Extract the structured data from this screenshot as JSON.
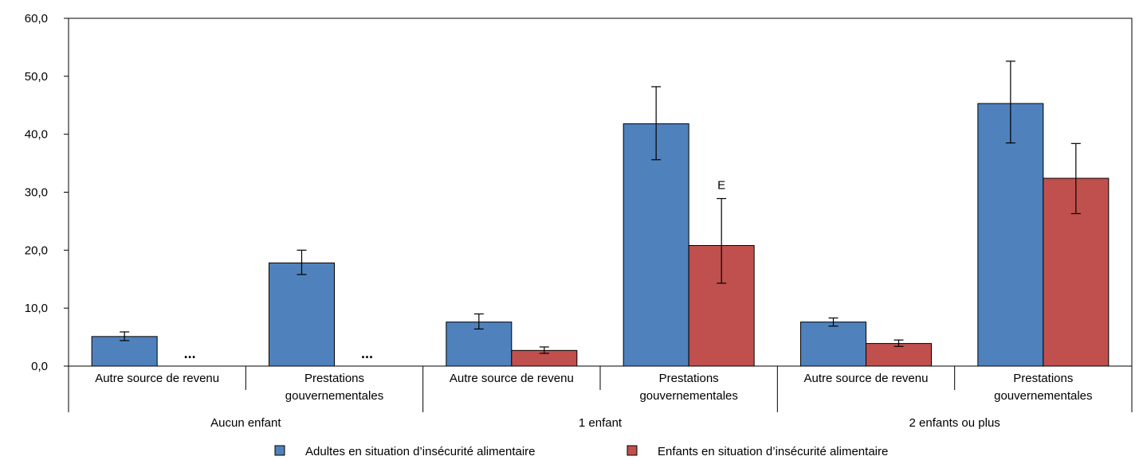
{
  "chart_data": {
    "type": "bar",
    "ylim": [
      0,
      60
    ],
    "y_ticks": [
      "0,0",
      "10,0",
      "20,0",
      "30,0",
      "40,0",
      "50,0",
      "60,0"
    ],
    "grid": false,
    "legend_position": "bottom-center",
    "groups": [
      {
        "label": "Aucun enfant",
        "subcategories": [
          "Autre source de revenu",
          "Prestations gouvernementales"
        ]
      },
      {
        "label": "1 enfant",
        "subcategories": [
          "Autre source de revenu",
          "Prestations gouvernementales"
        ]
      },
      {
        "label": "2 enfants ou plus",
        "subcategories": [
          "Autre source de revenu",
          "Prestations gouvernementales"
        ]
      }
    ],
    "series": [
      {
        "name": "Adultes en situation d’insécurité alimentaire",
        "color": "#4f81bd",
        "values": [
          5.1,
          17.8,
          7.6,
          41.8,
          7.6,
          45.3
        ],
        "error_low": [
          4.4,
          15.8,
          6.4,
          35.6,
          6.9,
          38.5
        ],
        "error_high": [
          5.9,
          20.0,
          9.0,
          48.2,
          8.3,
          52.6
        ],
        "value_flags": [
          "",
          "",
          "",
          "",
          "",
          ""
        ]
      },
      {
        "name": "Enfants en situation d’insécurité alimentaire",
        "color": "#c0504d",
        "values": [
          null,
          null,
          2.7,
          20.8,
          3.9,
          32.4
        ],
        "error_low": [
          null,
          null,
          2.2,
          14.3,
          3.4,
          26.3
        ],
        "error_high": [
          null,
          null,
          3.3,
          28.9,
          4.5,
          38.4
        ],
        "value_flags": [
          "...",
          "...",
          "",
          "E",
          "",
          ""
        ]
      }
    ]
  }
}
